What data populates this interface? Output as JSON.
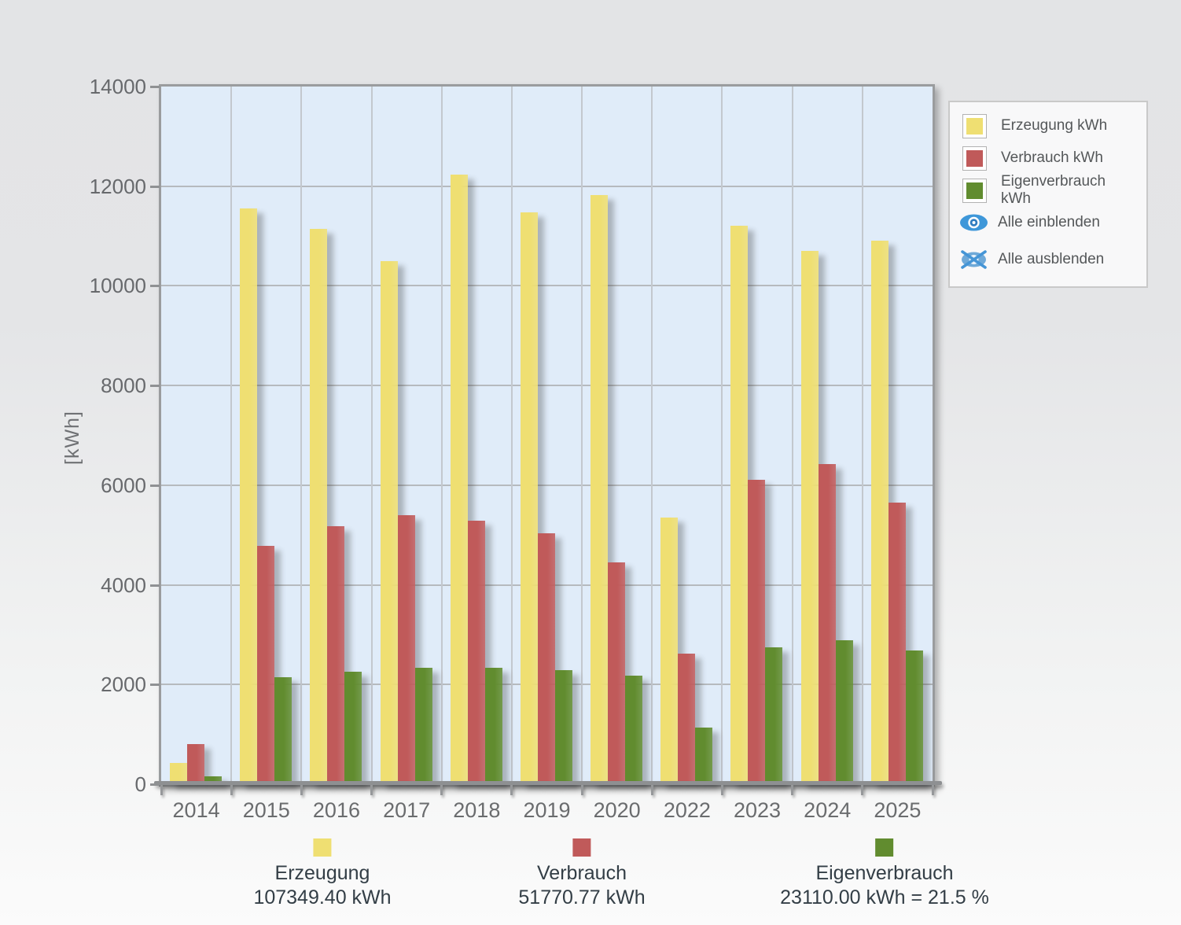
{
  "chart_data": {
    "type": "bar",
    "title": "",
    "xlabel": "",
    "ylabel": "[kWh]",
    "ylim": [
      0,
      14000
    ],
    "ytick_step": 2000,
    "grid": true,
    "legend_position": "top-right",
    "categories": [
      "2014",
      "2015",
      "2016",
      "2017",
      "2018",
      "2019",
      "2020",
      "2022",
      "2023",
      "2024",
      "2025"
    ],
    "series": [
      {
        "name": "Erzeugung kWh",
        "color": "#EFDF72",
        "values": [
          420,
          11550,
          11150,
          10500,
          12230,
          11480,
          11830,
          5350,
          11210,
          10700,
          10910
        ]
      },
      {
        "name": "Verbrauch kWh",
        "color": "#C05A5A",
        "values": [
          810,
          4780,
          5180,
          5400,
          5280,
          5030,
          4450,
          2620,
          6110,
          6420,
          5650
        ]
      },
      {
        "name": "Eigenverbrauch kWh",
        "color": "#618C2F",
        "values": [
          160,
          2150,
          2250,
          2330,
          2330,
          2290,
          2180,
          1130,
          2750,
          2890,
          2690
        ]
      }
    ]
  },
  "legend": {
    "show_all_label": "Alle einblenden",
    "hide_all_label": "Alle ausblenden"
  },
  "footer": {
    "totals": [
      {
        "name": "Erzeugung",
        "value": "107349.40 kWh",
        "color": "#EFDF72"
      },
      {
        "name": "Verbrauch",
        "value": "51770.77 kWh",
        "color": "#C05A5A"
      },
      {
        "name": "Eigenverbrauch",
        "value": "23110.00 kWh = 21.5 %",
        "color": "#618C2F"
      }
    ]
  },
  "colors": {
    "plot_background": "#E0ECF9",
    "grid_line": "#B6BABE",
    "axis_line": "#8E9092",
    "eye_icon_blue": "#3E97D9"
  }
}
